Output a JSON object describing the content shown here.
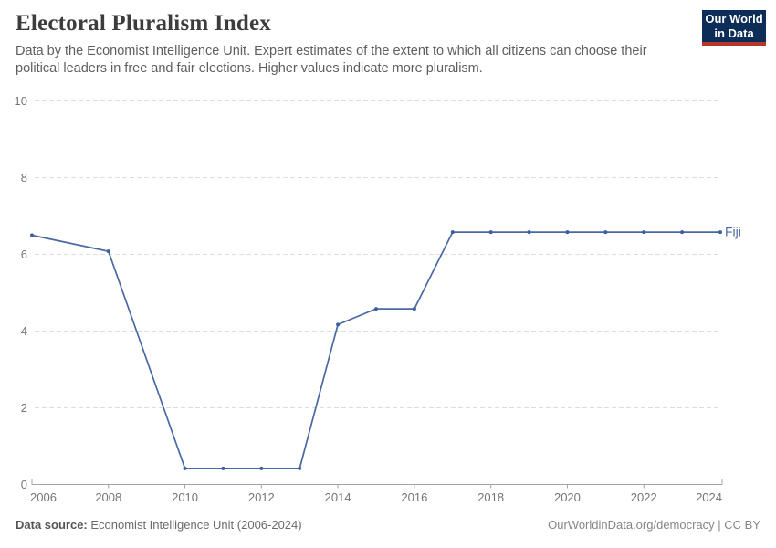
{
  "header": {
    "title": "Electoral Pluralism Index",
    "subtitle": "Data by the Economist Intelligence Unit. Expert estimates of the extent to which all citizens can choose their political leaders in free and fair elections. Higher values indicate more pluralism."
  },
  "logo": {
    "line1": "Our World",
    "line2": "in Data"
  },
  "colors": {
    "line": "#4A69A4",
    "dot": "#3E5E9C",
    "series_label": "#4A69A4",
    "grid": "#DDDDDD",
    "axis": "#A3A3A3",
    "tick_text": "#757575",
    "logo_bg": "#0D2D58",
    "logo_bar": "#B5362C"
  },
  "chart_data": {
    "type": "line",
    "title": "Electoral Pluralism Index",
    "xlabel": "",
    "ylabel": "",
    "xlim": [
      2006,
      2024
    ],
    "ylim": [
      0,
      10
    ],
    "x_ticks": [
      2006,
      2008,
      2010,
      2012,
      2014,
      2016,
      2018,
      2020,
      2022,
      2024
    ],
    "y_ticks": [
      0,
      2,
      4,
      6,
      8,
      10
    ],
    "grid": "horizontal-dashed",
    "legend": "end-of-line-label",
    "series": [
      {
        "name": "Fiji",
        "points": [
          [
            2006,
            6.5
          ],
          [
            2008,
            6.08
          ],
          [
            2010,
            0.42
          ],
          [
            2011,
            0.42
          ],
          [
            2012,
            0.42
          ],
          [
            2013,
            0.42
          ],
          [
            2014,
            4.17
          ],
          [
            2015,
            4.58
          ],
          [
            2016,
            4.58
          ],
          [
            2017,
            6.58
          ],
          [
            2018,
            6.58
          ],
          [
            2019,
            6.58
          ],
          [
            2020,
            6.58
          ],
          [
            2021,
            6.58
          ],
          [
            2022,
            6.58
          ],
          [
            2023,
            6.58
          ],
          [
            2024,
            6.58
          ]
        ]
      }
    ]
  },
  "footer": {
    "source_label": "Data source:",
    "source_value": " Economist Intelligence Unit (2006-2024)",
    "link": "OurWorldinData.org/democracy | CC BY"
  }
}
